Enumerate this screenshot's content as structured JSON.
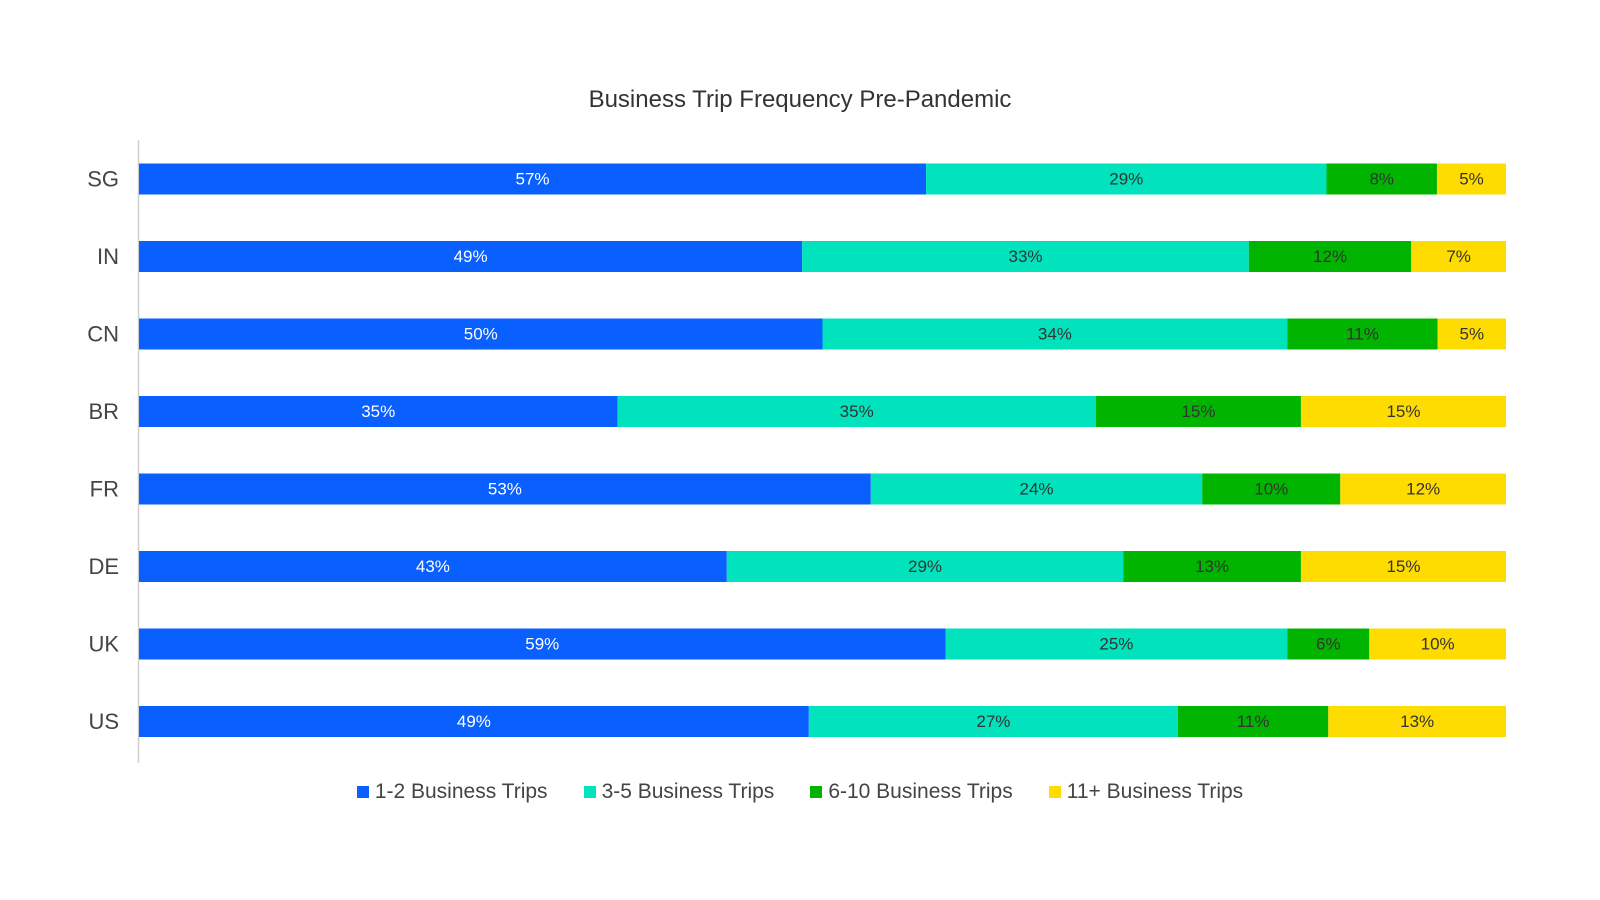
{
  "chart_data": {
    "type": "bar",
    "orientation": "horizontal",
    "stacked": true,
    "title": "Business Trip Frequency Pre-Pandemic",
    "xlabel": "",
    "ylabel": "",
    "xlim": [
      0,
      100
    ],
    "grid": false,
    "legend_position": "bottom",
    "categories": [
      "SG",
      "IN",
      "CN",
      "BR",
      "FR",
      "DE",
      "UK",
      "US"
    ],
    "series": [
      {
        "name": "1-2 Business Trips",
        "color": "#0a5fff",
        "label_color": "#ffffff",
        "values": [
          57,
          49,
          50,
          35,
          53,
          43,
          59,
          49
        ]
      },
      {
        "name": "3-5 Business Trips",
        "color": "#00e3bc",
        "label_color": "#333333",
        "values": [
          29,
          33,
          34,
          35,
          24,
          29,
          25,
          27
        ]
      },
      {
        "name": "6-10 Business Trips",
        "color": "#00b400",
        "label_color": "#333333",
        "values": [
          8,
          12,
          11,
          15,
          10,
          13,
          6,
          11
        ]
      },
      {
        "name": "11+ Business Trips",
        "color": "#ffdc00",
        "label_color": "#333333",
        "values": [
          5,
          7,
          5,
          15,
          12,
          15,
          10,
          13
        ]
      }
    ],
    "value_suffix": "%"
  }
}
